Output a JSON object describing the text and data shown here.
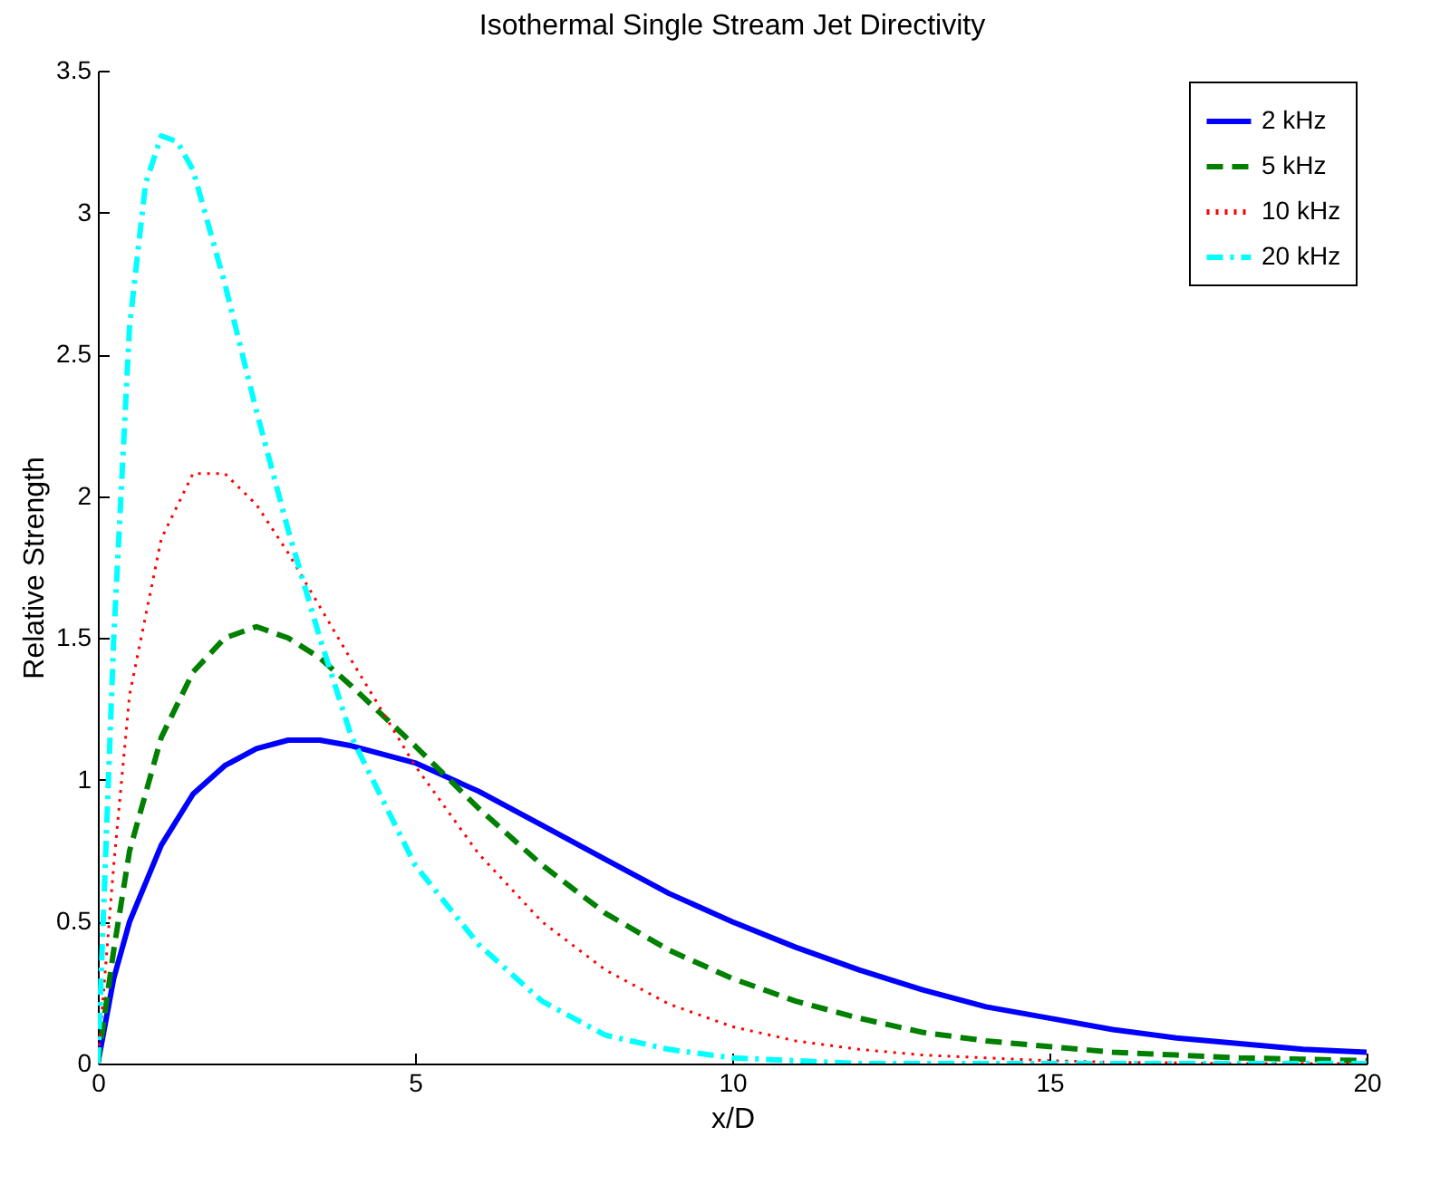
{
  "chart_data": {
    "type": "line",
    "title": "Isothermal Single Stream Jet Directivity",
    "xlabel": "x/D",
    "ylabel": "Relative Strength",
    "xlim": [
      0,
      20
    ],
    "xticks": [
      0,
      5,
      10,
      15,
      20
    ],
    "ylim": [
      0,
      3.5
    ],
    "yticks": [
      0,
      0.5,
      1,
      1.5,
      2,
      2.5,
      3,
      3.5
    ],
    "legend": "top right",
    "series": [
      {
        "name": "2 kHz",
        "color": "#0000ff",
        "line_style": "solid",
        "x": [
          0,
          0.25,
          0.5,
          1,
          1.5,
          2,
          2.5,
          3,
          3.5,
          4,
          5,
          6,
          7,
          8,
          9,
          10,
          11,
          12,
          13,
          14,
          15,
          16,
          17,
          18,
          19,
          20
        ],
        "values": [
          0,
          0.3,
          0.5,
          0.77,
          0.95,
          1.05,
          1.11,
          1.14,
          1.14,
          1.12,
          1.06,
          0.96,
          0.84,
          0.72,
          0.6,
          0.5,
          0.41,
          0.33,
          0.26,
          0.2,
          0.16,
          0.12,
          0.09,
          0.07,
          0.05,
          0.04
        ]
      },
      {
        "name": "5 kHz",
        "color": "#008000",
        "line_style": "dashed",
        "x": [
          0,
          0.25,
          0.5,
          1,
          1.5,
          2,
          2.5,
          3,
          3.5,
          4,
          5,
          6,
          7,
          8,
          9,
          10,
          11,
          12,
          13,
          14,
          15,
          16,
          17,
          18,
          19,
          20
        ],
        "values": [
          0,
          0.4,
          0.75,
          1.15,
          1.38,
          1.5,
          1.54,
          1.5,
          1.43,
          1.33,
          1.12,
          0.9,
          0.7,
          0.53,
          0.4,
          0.3,
          0.22,
          0.16,
          0.11,
          0.08,
          0.06,
          0.04,
          0.03,
          0.02,
          0.015,
          0.01
        ]
      },
      {
        "name": "10 kHz",
        "color": "#ff0000",
        "line_style": "dotted",
        "x": [
          0,
          0.25,
          0.5,
          1,
          1.5,
          2,
          2.5,
          3,
          4,
          5,
          6,
          7,
          8,
          9,
          10,
          11,
          12,
          13,
          14,
          15,
          16,
          18,
          20
        ],
        "values": [
          0,
          0.7,
          1.3,
          1.85,
          2.08,
          2.08,
          1.97,
          1.8,
          1.42,
          1.05,
          0.74,
          0.5,
          0.33,
          0.21,
          0.13,
          0.08,
          0.05,
          0.03,
          0.02,
          0.01,
          0.005,
          0,
          0
        ]
      },
      {
        "name": "20 kHz",
        "color": "#00ffff",
        "line_style": "dashdot",
        "x": [
          0,
          0.25,
          0.5,
          0.75,
          1,
          1.25,
          1.5,
          2,
          2.5,
          3,
          3.5,
          4,
          5,
          6,
          7,
          8,
          9,
          10,
          11,
          12,
          20
        ],
        "values": [
          0,
          1.5,
          2.6,
          3.1,
          3.27,
          3.25,
          3.15,
          2.75,
          2.3,
          1.88,
          1.5,
          1.15,
          0.7,
          0.42,
          0.22,
          0.1,
          0.05,
          0.02,
          0.01,
          0,
          0
        ]
      }
    ]
  }
}
